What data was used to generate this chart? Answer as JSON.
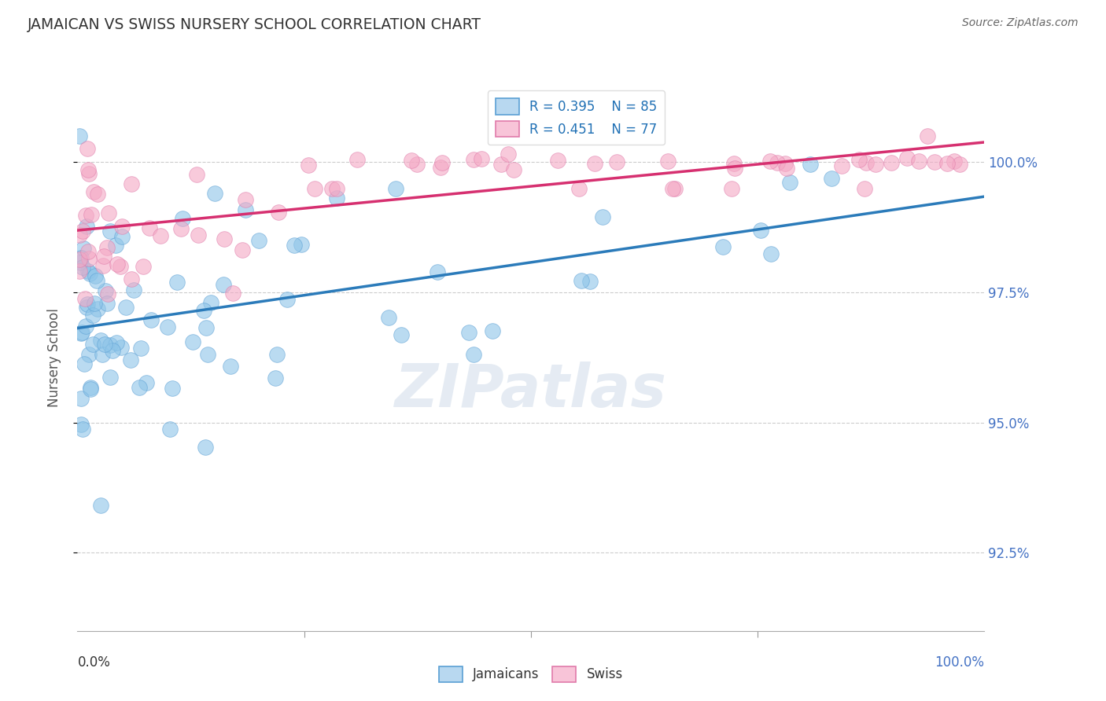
{
  "title": "JAMAICAN VS SWISS NURSERY SCHOOL CORRELATION CHART",
  "source": "Source: ZipAtlas.com",
  "ylabel": "Nursery School",
  "ytick_vals": [
    92.5,
    95.0,
    97.5,
    100.0
  ],
  "ytick_labels": [
    "92.5%",
    "95.0%",
    "97.5%",
    "100.0%"
  ],
  "xlim": [
    0.0,
    100.0
  ],
  "ylim": [
    91.0,
    101.5
  ],
  "legend_blue_r": "R = 0.395",
  "legend_blue_n": "N = 85",
  "legend_pink_r": "R = 0.451",
  "legend_pink_n": "N = 77",
  "blue_scatter_color": "#8dc4e8",
  "blue_scatter_edge": "#5a9fd4",
  "pink_scatter_color": "#f4a8c4",
  "pink_scatter_edge": "#e07aaa",
  "blue_line_color": "#2b7bba",
  "pink_line_color": "#d63070",
  "legend_text_color": "#2171b5",
  "title_color": "#333333",
  "source_color": "#666666",
  "ylabel_color": "#555555",
  "ytick_color": "#4472c4",
  "grid_color": "#cccccc",
  "xtick_color": "#333333",
  "watermark_color": "#ccd9e8"
}
